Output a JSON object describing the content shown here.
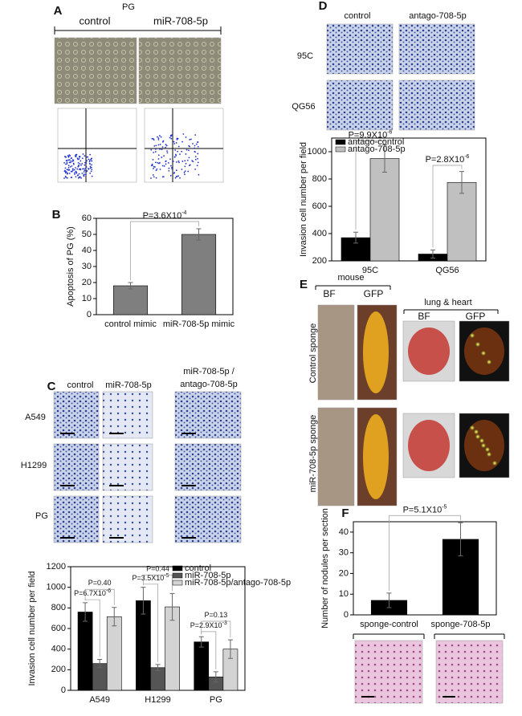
{
  "panels": {
    "A": {
      "label": "A",
      "title": "PG",
      "columns": [
        "control",
        "miR-708-5p"
      ]
    },
    "B": {
      "label": "B"
    },
    "C": {
      "label": "C",
      "columns": [
        "control",
        "miR-708-5p",
        "miR-708-5p /",
        "antago-708-5p"
      ],
      "rows": [
        "A549",
        "H1299",
        "PG"
      ]
    },
    "D": {
      "label": "D",
      "columns": [
        "control",
        "antago-708-5p"
      ],
      "rows": [
        "95C",
        "QG56"
      ]
    },
    "E": {
      "label": "E",
      "group1": "mouse",
      "group1_columns": [
        "BF",
        "GFP"
      ],
      "group2": "lung & heart",
      "group2_columns": [
        "BF",
        "GFP"
      ],
      "rows": [
        "Control sponge",
        "miR-708-5p sponge"
      ]
    },
    "F": {
      "label": "F"
    }
  },
  "chart_data": [
    {
      "type": "bar",
      "y_label": "Apoptosis of PG (%)",
      "categories": [
        "control mimic",
        "miR-708-5p mimic"
      ],
      "values": [
        18,
        50
      ],
      "errors": [
        2,
        3.5
      ],
      "color": "#7f7f7f",
      "ylim": [
        0,
        60
      ],
      "yticks": [
        0,
        10,
        20,
        30,
        40,
        50,
        60
      ],
      "annotations": [
        {
          "text": "P=3.6X10",
          "sup": "-4"
        }
      ]
    },
    {
      "type": "bar",
      "y_label": "Invasion cell number per field",
      "categories": [
        "A549",
        "H1299",
        "PG"
      ],
      "series": [
        {
          "name": "control",
          "color": "#000000",
          "values": [
            760,
            870,
            470
          ],
          "errors": [
            90,
            130,
            50
          ]
        },
        {
          "name": "miR-708-5p",
          "color": "#555555",
          "values": [
            260,
            220,
            130
          ],
          "errors": [
            40,
            30,
            50
          ]
        },
        {
          "name": "miR-708-5p/antago-708-5p",
          "color": "#d3d3d3",
          "values": [
            715,
            810,
            400
          ],
          "errors": [
            90,
            130,
            90
          ]
        }
      ],
      "ylim": [
        0,
        1200
      ],
      "yticks": [
        0,
        200,
        400,
        600,
        800,
        1000,
        1200
      ],
      "annotations": [
        {
          "text": "P=6.7X10",
          "sup": "-6"
        },
        {
          "text": "P=0.40"
        },
        {
          "text": "P=3.5X10",
          "sup": "-5"
        },
        {
          "text": "P=0.44"
        },
        {
          "text": "P=2.9X10",
          "sup": "-3"
        },
        {
          "text": "P=0.13"
        }
      ]
    },
    {
      "type": "bar",
      "y_label": "Invasion cell number per field",
      "categories": [
        "95C",
        "QG56"
      ],
      "series": [
        {
          "name": "antago-control",
          "color": "#000000",
          "values": [
            370,
            250
          ],
          "errors": [
            40,
            30
          ]
        },
        {
          "name": "antago-708-5p",
          "color": "#c0c0c0",
          "values": [
            950,
            775
          ],
          "errors": [
            100,
            80
          ]
        }
      ],
      "ylim": [
        200,
        1100
      ],
      "yticks": [
        200,
        400,
        600,
        800,
        1000
      ],
      "annotations": [
        {
          "text": "P=9.9X10",
          "sup": "-6"
        },
        {
          "text": "P=2.8X10",
          "sup": "-6"
        }
      ]
    },
    {
      "type": "bar",
      "y_label": "Number of nodules per section",
      "categories": [
        "sponge-control",
        "sponge-708-5p"
      ],
      "values": [
        7,
        36.5
      ],
      "errors": [
        3.5,
        8
      ],
      "color": "#000000",
      "ylim": [
        0,
        45
      ],
      "yticks": [
        0,
        10,
        20,
        30,
        40
      ],
      "annotations": [
        {
          "text": "P=5.1X10",
          "sup": "-5"
        }
      ]
    }
  ]
}
